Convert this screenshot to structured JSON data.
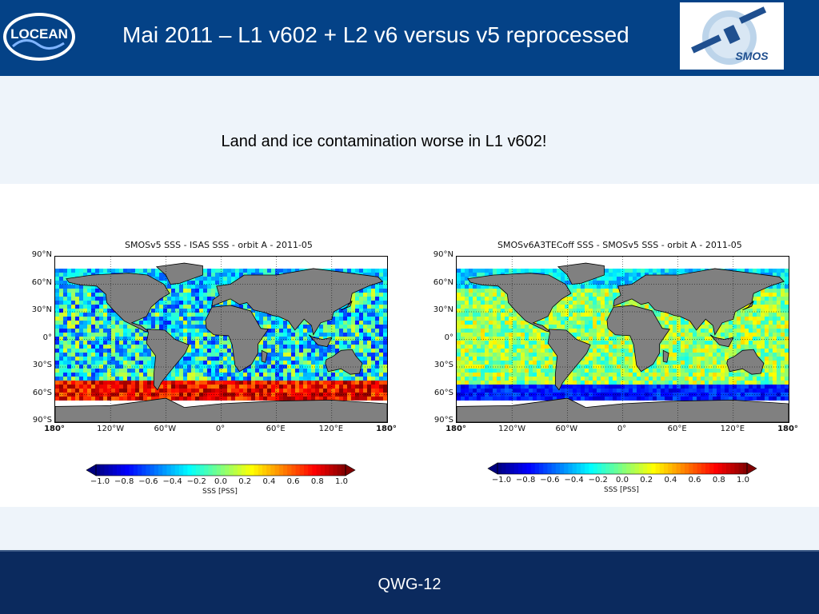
{
  "header": {
    "title": "Mai 2011 – L1 v602 + L2 v6 versus v5 reprocessed",
    "logo_left_text": "LOCEAN",
    "logo_right_text": "SMOS"
  },
  "subtitle": "Land and ice contamination worse in L1 v602!",
  "footer": {
    "label": "QWG-12"
  },
  "colors": {
    "header_bg": "#044287",
    "footer_bg": "#0b2a5e",
    "band_bg": "#eef4fa"
  },
  "chart_data": [
    {
      "type": "heatmap",
      "title": "SMOSv5 SSS - ISAS SSS - orbit A - 2011-05",
      "y_ticks": [
        "90°N",
        "60°N",
        "30°N",
        "0°",
        "30°S",
        "60°S",
        "90°S"
      ],
      "x_ticks": [
        "180°",
        "120°W",
        "60°W",
        "0°",
        "60°E",
        "120°E",
        "180°"
      ],
      "xlim": [
        -180,
        180
      ],
      "ylim": [
        -90,
        90
      ],
      "colorbar": {
        "ticks": [
          "−1.0",
          "−0.8",
          "−0.6",
          "−0.4",
          "−0.2",
          "0.0",
          "0.2",
          "0.4",
          "0.6",
          "0.8",
          "1.0"
        ],
        "range": [
          -1.0,
          1.0
        ],
        "label": "SSS [PSS]",
        "colormap": "jet"
      }
    },
    {
      "type": "heatmap",
      "title": "SMOSv6A3TECoff SSS - SMOSv5 SSS - orbit A - 2011-05",
      "y_ticks": [
        "90°N",
        "60°N",
        "30°N",
        "0°",
        "30°S",
        "60°S",
        "90°S"
      ],
      "x_ticks": [
        "180°",
        "120°W",
        "60°W",
        "0°",
        "60°E",
        "120°E",
        "180°"
      ],
      "xlim": [
        -180,
        180
      ],
      "ylim": [
        -90,
        90
      ],
      "colorbar": {
        "ticks": [
          "−1.0",
          "−0.8",
          "−0.6",
          "−0.4",
          "−0.2",
          "0.0",
          "0.2",
          "0.4",
          "0.6",
          "0.8",
          "1.0"
        ],
        "range": [
          -1.0,
          1.0
        ],
        "label": "SSS [PSS]",
        "colormap": "jet"
      }
    }
  ]
}
